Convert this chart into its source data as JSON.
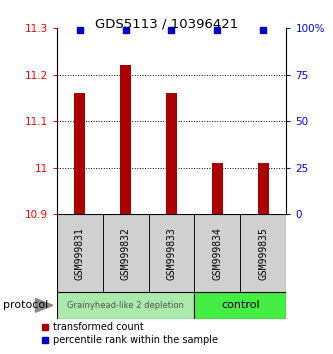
{
  "title": "GDS5113 / 10396421",
  "samples": [
    "GSM999831",
    "GSM999832",
    "GSM999833",
    "GSM999834",
    "GSM999835"
  ],
  "red_values": [
    11.16,
    11.22,
    11.16,
    11.01,
    11.01
  ],
  "blue_values": [
    99,
    99,
    99,
    99,
    99
  ],
  "baseline": 10.9,
  "ylim_left": [
    10.9,
    11.3
  ],
  "ylim_right": [
    0,
    100
  ],
  "yticks_left": [
    10.9,
    11.0,
    11.1,
    11.2,
    11.3
  ],
  "ytick_labels_left": [
    "10.9",
    "11",
    "11.1",
    "11.2",
    "11.3"
  ],
  "yticks_right": [
    0,
    25,
    50,
    75,
    100
  ],
  "ytick_labels_right": [
    "0",
    "25",
    "50",
    "75",
    "100%"
  ],
  "grid_lines": [
    11.0,
    11.1,
    11.2
  ],
  "group1_label": "Grainyhead-like 2 depletion",
  "group2_label": "control",
  "group1_indices": [
    0,
    1,
    2
  ],
  "group2_indices": [
    3,
    4
  ],
  "group1_color": "#AAEAAA",
  "group2_color": "#44EE44",
  "bar_color": "#AA0000",
  "dot_color": "#0000CC",
  "protocol_label": "protocol",
  "legend_red_label": "transformed count",
  "legend_blue_label": "percentile rank within the sample",
  "sample_box_color": "#D0D0D0",
  "background_color": "#FFFFFF",
  "bar_width": 0.25
}
